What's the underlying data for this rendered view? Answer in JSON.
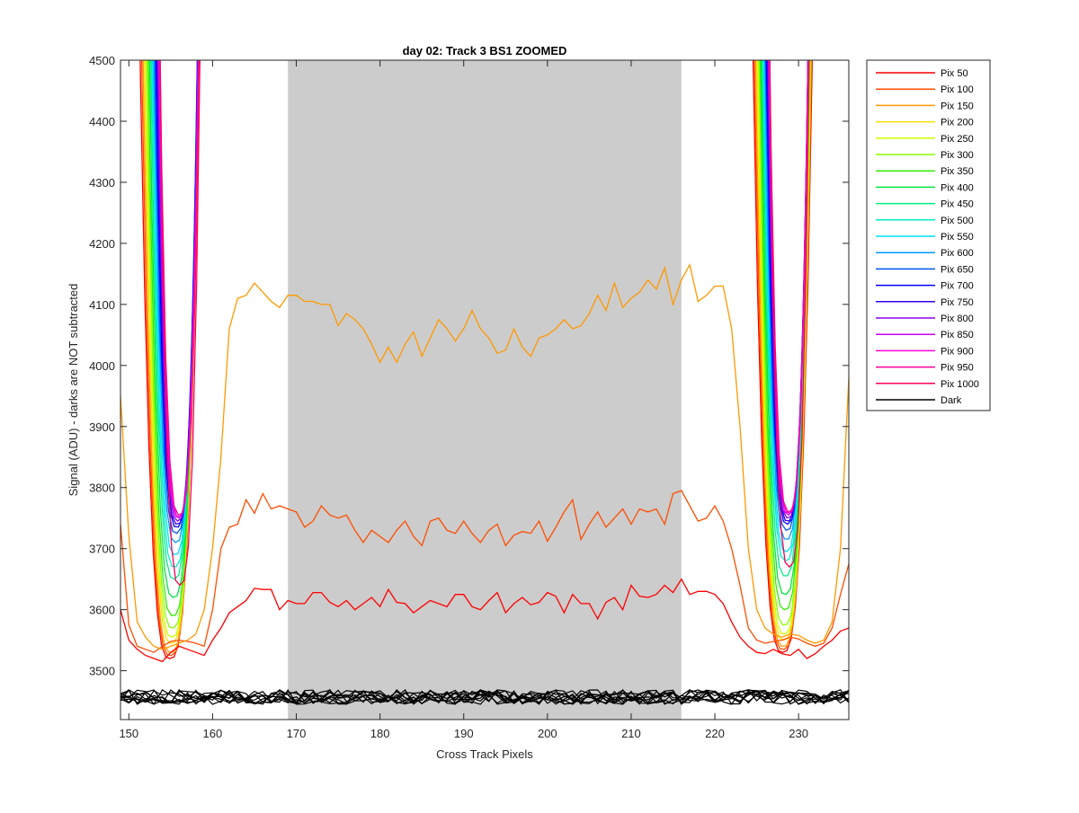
{
  "chart_data": {
    "type": "line",
    "title": "day 02: Track 3  BS1 ZOOMED",
    "xlabel": "Cross Track Pixels",
    "ylabel": "Signal (ADU) - darks are NOT subtracted",
    "xlim": [
      149,
      236
    ],
    "ylim": [
      3420,
      4500
    ],
    "xticks": [
      150,
      160,
      170,
      180,
      190,
      200,
      210,
      220,
      230
    ],
    "yticks": [
      3500,
      3600,
      3700,
      3800,
      3900,
      4000,
      4100,
      4200,
      4300,
      4400,
      4500
    ],
    "grid": false,
    "legend_location": "outside-right-top",
    "shaded_region": {
      "x": [
        169,
        216
      ],
      "y": [
        3420,
        4500
      ],
      "color": "#cccccc"
    },
    "notch_series": [
      {
        "name": "Pix 50",
        "color": "#ff0000",
        "left_min": 3520,
        "right_min": 3530
      },
      {
        "name": "Pix 100",
        "color": "#ff4d00",
        "left_min": 3525,
        "right_min": 3535
      },
      {
        "name": "Pix 150",
        "color": "#ff9900",
        "left_min": 3530,
        "right_min": 3540
      },
      {
        "name": "Pix 200",
        "color": "#ffdd00",
        "left_min": 3545,
        "right_min": 3550
      },
      {
        "name": "Pix 250",
        "color": "#ccff00",
        "left_min": 3555,
        "right_min": 3560
      },
      {
        "name": "Pix 300",
        "color": "#88ff00",
        "left_min": 3570,
        "right_min": 3575
      },
      {
        "name": "Pix 350",
        "color": "#33ee00",
        "left_min": 3590,
        "right_min": 3600
      },
      {
        "name": "Pix 400",
        "color": "#00e640",
        "left_min": 3620,
        "right_min": 3625
      },
      {
        "name": "Pix 450",
        "color": "#00ee88",
        "left_min": 3650,
        "right_min": 3655
      },
      {
        "name": "Pix 500",
        "color": "#00eecc",
        "left_min": 3670,
        "right_min": 3680
      },
      {
        "name": "Pix 550",
        "color": "#00ddff",
        "left_min": 3690,
        "right_min": 3695
      },
      {
        "name": "Pix 600",
        "color": "#0099ff",
        "left_min": 3710,
        "right_min": 3715
      },
      {
        "name": "Pix 650",
        "color": "#0055ee",
        "left_min": 3725,
        "right_min": 3730
      },
      {
        "name": "Pix 700",
        "color": "#0000ff",
        "left_min": 3735,
        "right_min": 3740
      },
      {
        "name": "Pix 750",
        "color": "#3300ee",
        "left_min": 3740,
        "right_min": 3745
      },
      {
        "name": "Pix 800",
        "color": "#8800ee",
        "left_min": 3745,
        "right_min": 3750
      },
      {
        "name": "Pix 850",
        "color": "#cc00ee",
        "left_min": 3750,
        "right_min": 3755
      },
      {
        "name": "Pix 900",
        "color": "#ff00dd",
        "left_min": 3752,
        "right_min": 3758
      },
      {
        "name": "Pix 950",
        "color": "#ff0099",
        "left_min": 3755,
        "right_min": 3760
      },
      {
        "name": "Pix 1000",
        "color": "#ff0055",
        "left_min": 3640,
        "right_min": 3670
      }
    ],
    "series": [
      {
        "name": "Pix 50 (flat)",
        "color": "#ff0000",
        "x": [
          149,
          150,
          151,
          152,
          153,
          154,
          155,
          156,
          157,
          158,
          159,
          160,
          161,
          162,
          163,
          164,
          165,
          166,
          167,
          168,
          169,
          170,
          171,
          172,
          173,
          174,
          175,
          176,
          177,
          178,
          179,
          180,
          181,
          182,
          183,
          184,
          185,
          186,
          187,
          188,
          189,
          190,
          191,
          192,
          193,
          194,
          195,
          196,
          197,
          198,
          199,
          200,
          201,
          202,
          203,
          204,
          205,
          206,
          207,
          208,
          209,
          210,
          211,
          212,
          213,
          214,
          215,
          216,
          217,
          218,
          219,
          220,
          221,
          222,
          223,
          224,
          225,
          226,
          227,
          228,
          229,
          230,
          231,
          232,
          233,
          234,
          235,
          236
        ],
        "values": [
          3600,
          3550,
          3535,
          3525,
          3520,
          3515,
          3530,
          3540,
          3535,
          3530,
          3525,
          3550,
          3570,
          3595,
          3605,
          3615,
          3635,
          3633,
          3633,
          3600,
          3615,
          3610,
          3610,
          3628,
          3628,
          3612,
          3605,
          3615,
          3600,
          3610,
          3620,
          3605,
          3633,
          3612,
          3610,
          3595,
          3605,
          3615,
          3610,
          3605,
          3625,
          3625,
          3605,
          3600,
          3615,
          3628,
          3595,
          3610,
          3620,
          3608,
          3612,
          3628,
          3622,
          3595,
          3625,
          3610,
          3610,
          3585,
          3612,
          3620,
          3600,
          3640,
          3622,
          3620,
          3625,
          3640,
          3628,
          3650,
          3625,
          3630,
          3630,
          3625,
          3610,
          3580,
          3555,
          3540,
          3530,
          3528,
          3535,
          3528,
          3525,
          3535,
          3520,
          3528,
          3540,
          3550,
          3565,
          3570
        ]
      },
      {
        "name": "Pix 100 (flat)",
        "color": "#ff4d00",
        "x": [
          149,
          150,
          151,
          152,
          153,
          154,
          155,
          156,
          157,
          158,
          159,
          160,
          161,
          162,
          163,
          164,
          165,
          166,
          167,
          168,
          169,
          170,
          171,
          172,
          173,
          174,
          175,
          176,
          177,
          178,
          179,
          180,
          181,
          182,
          183,
          184,
          185,
          186,
          187,
          188,
          189,
          190,
          191,
          192,
          193,
          194,
          195,
          196,
          197,
          198,
          199,
          200,
          201,
          202,
          203,
          204,
          205,
          206,
          207,
          208,
          209,
          210,
          211,
          212,
          213,
          214,
          215,
          216,
          217,
          218,
          219,
          220,
          221,
          222,
          223,
          224,
          225,
          226,
          227,
          228,
          229,
          230,
          231,
          232,
          233,
          234,
          235,
          236
        ],
        "values": [
          3740,
          3575,
          3540,
          3535,
          3530,
          3540,
          3548,
          3550,
          3548,
          3545,
          3540,
          3600,
          3700,
          3735,
          3740,
          3780,
          3758,
          3790,
          3765,
          3770,
          3765,
          3760,
          3735,
          3745,
          3770,
          3755,
          3750,
          3755,
          3730,
          3710,
          3730,
          3720,
          3710,
          3730,
          3745,
          3720,
          3705,
          3745,
          3750,
          3730,
          3725,
          3745,
          3725,
          3710,
          3730,
          3740,
          3705,
          3722,
          3728,
          3725,
          3745,
          3712,
          3735,
          3760,
          3780,
          3715,
          3740,
          3760,
          3735,
          3750,
          3765,
          3740,
          3765,
          3760,
          3765,
          3740,
          3790,
          3795,
          3770,
          3745,
          3750,
          3770,
          3745,
          3700,
          3640,
          3570,
          3550,
          3545,
          3548,
          3550,
          3555,
          3552,
          3545,
          3540,
          3545,
          3570,
          3625,
          3675
        ]
      },
      {
        "name": "Pix 150 (flat)",
        "color": "#ff9900",
        "x": [
          149,
          150,
          151,
          152,
          153,
          154,
          155,
          156,
          157,
          158,
          159,
          160,
          161,
          162,
          163,
          164,
          165,
          166,
          167,
          168,
          169,
          170,
          171,
          172,
          173,
          174,
          175,
          176,
          177,
          178,
          179,
          180,
          181,
          182,
          183,
          184,
          185,
          186,
          187,
          188,
          189,
          190,
          191,
          192,
          193,
          194,
          195,
          196,
          197,
          198,
          199,
          200,
          201,
          202,
          203,
          204,
          205,
          206,
          207,
          208,
          209,
          210,
          211,
          212,
          213,
          214,
          215,
          216,
          217,
          218,
          219,
          220,
          221,
          222,
          223,
          224,
          225,
          226,
          227,
          228,
          229,
          230,
          231,
          232,
          233,
          234,
          235,
          236
        ],
        "values": [
          3950,
          3720,
          3580,
          3555,
          3540,
          3535,
          3540,
          3545,
          3550,
          3560,
          3600,
          3700,
          3850,
          4060,
          4110,
          4115,
          4135,
          4120,
          4105,
          4095,
          4115,
          4115,
          4105,
          4105,
          4100,
          4100,
          4065,
          4085,
          4075,
          4060,
          4035,
          4005,
          4030,
          4005,
          4035,
          4055,
          4015,
          4045,
          4075,
          4060,
          4040,
          4060,
          4090,
          4060,
          4045,
          4020,
          4025,
          4060,
          4030,
          4015,
          4045,
          4050,
          4060,
          4075,
          4060,
          4065,
          4085,
          4115,
          4090,
          4135,
          4095,
          4110,
          4120,
          4140,
          4125,
          4160,
          4100,
          4140,
          4165,
          4105,
          4115,
          4130,
          4130,
          4060,
          3900,
          3700,
          3600,
          3570,
          3560,
          3555,
          3560,
          3558,
          3550,
          3545,
          3550,
          3580,
          3700,
          3980
        ]
      }
    ],
    "dark_series": {
      "name": "Dark",
      "color": "#000000",
      "count": 10,
      "center": 3457,
      "spread": 12
    },
    "legend_entries": [
      {
        "label": "Pix 50",
        "color": "#ff0000"
      },
      {
        "label": "Pix 100",
        "color": "#ff4d00"
      },
      {
        "label": "Pix 150",
        "color": "#ff9900"
      },
      {
        "label": "Pix 200",
        "color": "#ffdd00"
      },
      {
        "label": "Pix 250",
        "color": "#ccff00"
      },
      {
        "label": "Pix 300",
        "color": "#88ff00"
      },
      {
        "label": "Pix 350",
        "color": "#33ee00"
      },
      {
        "label": "Pix 400",
        "color": "#00e640"
      },
      {
        "label": "Pix 450",
        "color": "#00ee88"
      },
      {
        "label": "Pix 500",
        "color": "#00eecc"
      },
      {
        "label": "Pix 550",
        "color": "#00ddff"
      },
      {
        "label": "Pix 600",
        "color": "#0099ff"
      },
      {
        "label": "Pix 650",
        "color": "#0055ee"
      },
      {
        "label": "Pix 700",
        "color": "#0000ff"
      },
      {
        "label": "Pix 750",
        "color": "#3300ee"
      },
      {
        "label": "Pix 800",
        "color": "#8800ee"
      },
      {
        "label": "Pix 850",
        "color": "#cc00ee"
      },
      {
        "label": "Pix 900",
        "color": "#ff00dd"
      },
      {
        "label": "Pix 950",
        "color": "#ff0099"
      },
      {
        "label": "Pix 1000",
        "color": "#ff0055"
      },
      {
        "label": "Dark",
        "color": "#000000"
      }
    ]
  }
}
